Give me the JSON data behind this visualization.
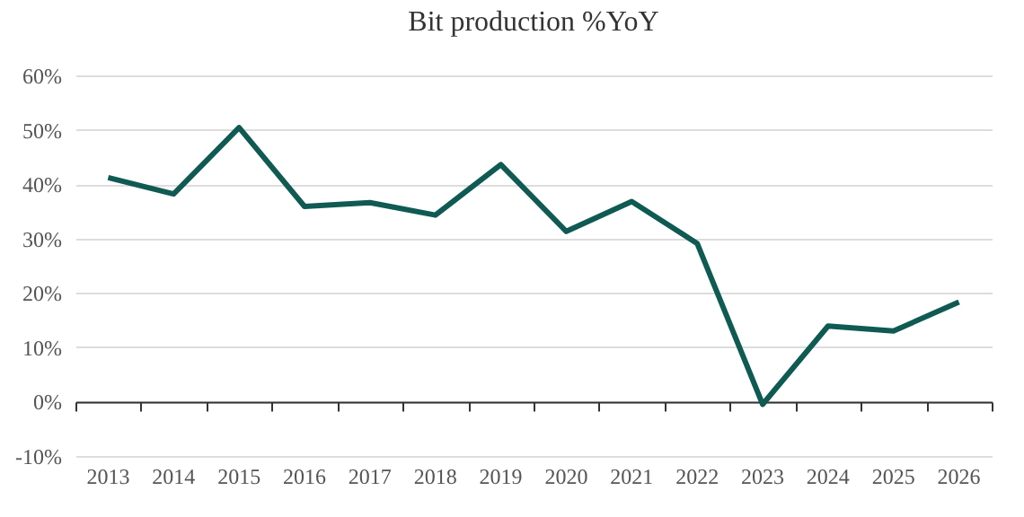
{
  "chart_data": {
    "type": "line",
    "title": "Bit production %YoY",
    "categories": [
      "2013",
      "2014",
      "2015",
      "2016",
      "2017",
      "2018",
      "2019",
      "2020",
      "2021",
      "2022",
      "2023",
      "2024",
      "2025",
      "2026"
    ],
    "series": [
      {
        "color": "#0f5a52",
        "values": [
          41.2,
          38.2,
          50.4,
          35.9,
          36.6,
          34.3,
          43.6,
          31.3,
          36.8,
          29.1,
          -0.5,
          13.9,
          13.0,
          18.3
        ]
      }
    ],
    "ylim": [
      -10,
      60
    ],
    "yticks": [
      {
        "value": -10,
        "label": "-10%"
      },
      {
        "value": 0,
        "label": "0%"
      },
      {
        "value": 10,
        "label": "10%"
      },
      {
        "value": 20,
        "label": "20%"
      },
      {
        "value": 30,
        "label": "30%"
      },
      {
        "value": 40,
        "label": "40%"
      },
      {
        "value": 50,
        "label": "50%"
      },
      {
        "value": 60,
        "label": "60%"
      }
    ],
    "grid": "y",
    "marker": "none",
    "line_style": "solid",
    "legend": false
  }
}
